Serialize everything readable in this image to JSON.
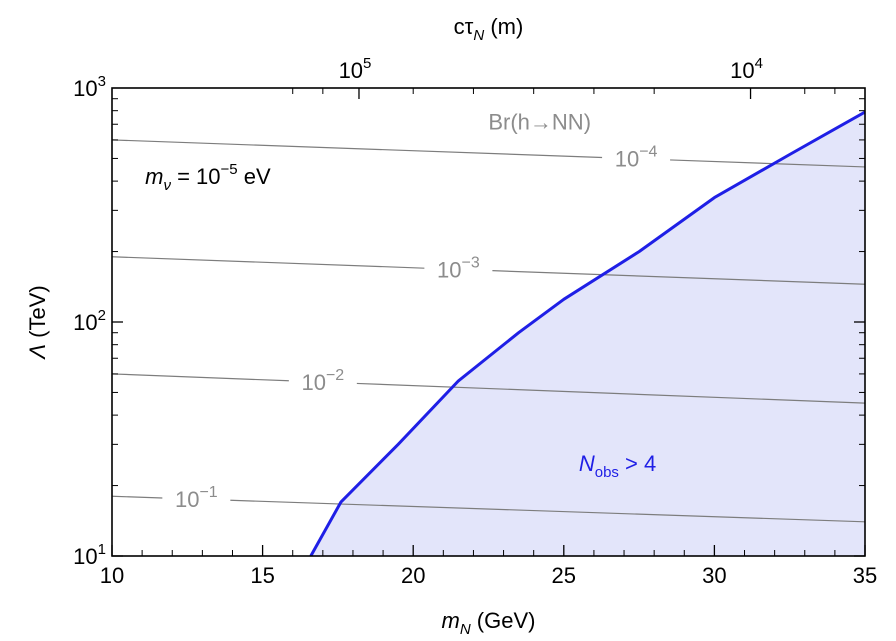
{
  "chart_data": {
    "type": "line",
    "title": "",
    "xlabel": "m_N (GeV)",
    "ylabel": "Λ (TeV)",
    "top_axis_label": "cτ_N (m)",
    "xlim": [
      10,
      35
    ],
    "ylim": [
      10,
      1000
    ],
    "y_scale": "log",
    "x_ticks": [
      10,
      15,
      20,
      25,
      30,
      35
    ],
    "x_tick_labels": [
      "10",
      "15",
      "20",
      "25",
      "30",
      "35"
    ],
    "y_ticks": [
      {
        "value": 10,
        "base": "10",
        "exp": "1"
      },
      {
        "value": 100,
        "base": "10",
        "exp": "2"
      },
      {
        "value": 1000,
        "base": "10",
        "exp": "3"
      }
    ],
    "top_ticks": [
      {
        "x": 18.2,
        "base": "10",
        "exp": "5"
      },
      {
        "x": 31.2,
        "base": "10",
        "exp": "4"
      }
    ],
    "grid": false,
    "contour_title": "Br(h→NN)",
    "contours": [
      {
        "label_base": "10",
        "label_exp": "−4",
        "label_x": 27.4,
        "points": [
          [
            10,
            600
          ],
          [
            35,
            460
          ]
        ]
      },
      {
        "label_base": "10",
        "label_exp": "−3",
        "label_x": 21.5,
        "points": [
          [
            10,
            190
          ],
          [
            35,
            145
          ]
        ]
      },
      {
        "label_base": "10",
        "label_exp": "−2",
        "label_x": 17.0,
        "points": [
          [
            10,
            60
          ],
          [
            35,
            45
          ]
        ]
      },
      {
        "label_base": "10",
        "label_exp": "−1",
        "label_x": 12.8,
        "points": [
          [
            10,
            18
          ],
          [
            35,
            14
          ]
        ]
      }
    ],
    "series": [
      {
        "name": "",
        "color": "#1f1fe6",
        "fill": "#e3e5fa",
        "points": [
          [
            16.6,
            10
          ],
          [
            17.6,
            17
          ],
          [
            19.5,
            30
          ],
          [
            21.5,
            56
          ],
          [
            23.5,
            90
          ],
          [
            25,
            125
          ],
          [
            27.5,
            200
          ],
          [
            30,
            340
          ],
          [
            32.5,
            520
          ],
          [
            35,
            790
          ]
        ]
      }
    ],
    "annotations": {
      "region_label_main": "N",
      "region_label_sub": "obs",
      "region_label_rest": " > 4",
      "region_x": 25.5,
      "region_y": 25,
      "mass_label_main": "m",
      "mass_label_sub": "ν",
      "mass_label_mid": " = 10",
      "mass_label_exp": "−5",
      "mass_label_unit": " eV",
      "mass_x": 11.1,
      "mass_y": 420
    },
    "colors": {
      "curve": "#1f1fe6",
      "region_fill": "#e3e5fa",
      "contour_line": "#7d7d7d",
      "contour_text": "#8c8c8c",
      "axis": "#000000"
    }
  }
}
